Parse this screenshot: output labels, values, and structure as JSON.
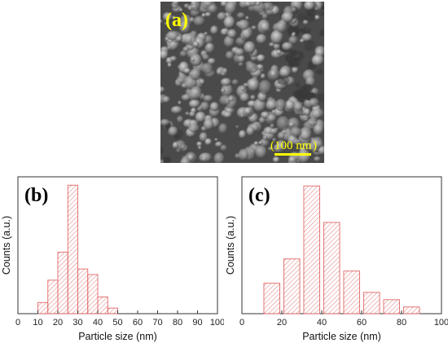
{
  "panels": {
    "sem": {
      "label": "(a)",
      "scale_bar_text": "100 nm",
      "scale_bar_color": "#ffff00"
    }
  },
  "chart_data": [
    {
      "type": "bar",
      "panel_label": "(b)",
      "xlabel": "Particle size (nm)",
      "ylabel": "Counts (a.u.)",
      "xlim": [
        0,
        100
      ],
      "xticks": [
        0,
        10,
        20,
        30,
        40,
        50,
        60,
        70,
        80,
        90,
        100
      ],
      "y_tick_labels": false,
      "bar_width": 5,
      "bar_color": "#e06868",
      "hatch": "diagonal",
      "x": [
        12.5,
        17.5,
        22.5,
        27.5,
        32.5,
        37.5,
        42.5,
        47.5
      ],
      "values": [
        2,
        6,
        11,
        23,
        8,
        7,
        3,
        1
      ],
      "ylim": [
        0,
        24.5
      ]
    },
    {
      "type": "bar",
      "panel_label": "(c)",
      "xlabel": "Particle size (nm)",
      "ylabel": "Counts (a.u.)",
      "xlim": [
        0,
        100
      ],
      "xticks": [
        0,
        20,
        40,
        60,
        80,
        100
      ],
      "y_tick_labels": false,
      "bar_width": 8,
      "bar_color": "#e06868",
      "hatch": "diagonal",
      "x": [
        15,
        25,
        35,
        45,
        55,
        65,
        75,
        85
      ],
      "values": [
        5,
        9,
        21,
        15,
        7,
        3.5,
        2.3,
        1.1
      ],
      "ylim": [
        0,
        22.5
      ]
    }
  ]
}
